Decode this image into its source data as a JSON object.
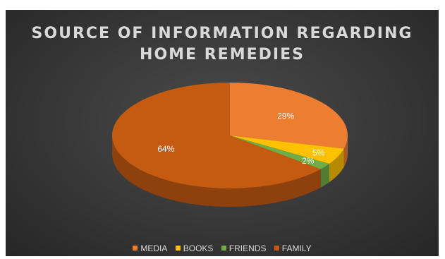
{
  "chart_data": {
    "type": "pie",
    "title_lines": [
      "SOURCE OF INFORMATION REGARDING",
      "HOME REMEDIES"
    ],
    "categories": [
      "MEDIA",
      "BOOKS",
      "FRIENDS",
      "FAMILY"
    ],
    "values": [
      29,
      5,
      2,
      64
    ],
    "labels": [
      "29%",
      "5%",
      "2%",
      "64%"
    ],
    "colors": [
      "#ED7D31",
      "#FFC000",
      "#70AD47",
      "#C55A11"
    ],
    "style": "3d",
    "legend_position": "bottom"
  }
}
